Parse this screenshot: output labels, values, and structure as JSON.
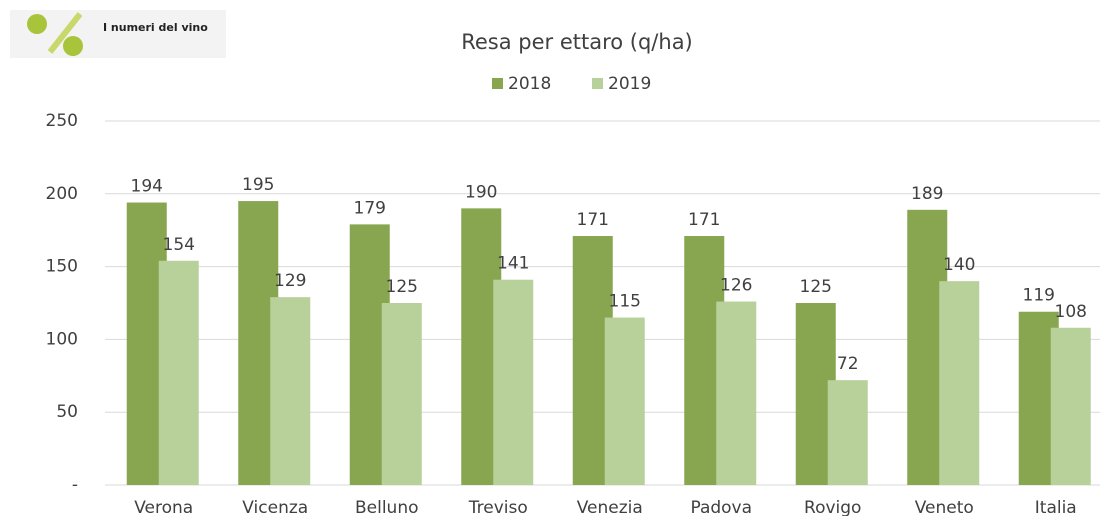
{
  "logo": {
    "text": "I numeri del vino"
  },
  "chart_data": {
    "type": "bar",
    "title": "Resa per ettaro (q/ha)",
    "categories": [
      "Verona",
      "Vicenza",
      "Belluno",
      "Treviso",
      "Venezia",
      "Padova",
      "Rovigo",
      "Veneto",
      "Italia"
    ],
    "series": [
      {
        "name": "2018",
        "color": "#88a64f",
        "values": [
          194,
          195,
          179,
          190,
          171,
          171,
          125,
          189,
          119
        ]
      },
      {
        "name": "2019",
        "color": "#b8d09a",
        "values": [
          154,
          129,
          125,
          141,
          115,
          126,
          72,
          140,
          108
        ]
      }
    ],
    "ylim": [
      0,
      250
    ],
    "yticks": [
      {
        "value": 0,
        "label": "-"
      },
      50,
      100,
      150,
      200,
      250
    ],
    "grid": true,
    "legend": "top"
  }
}
